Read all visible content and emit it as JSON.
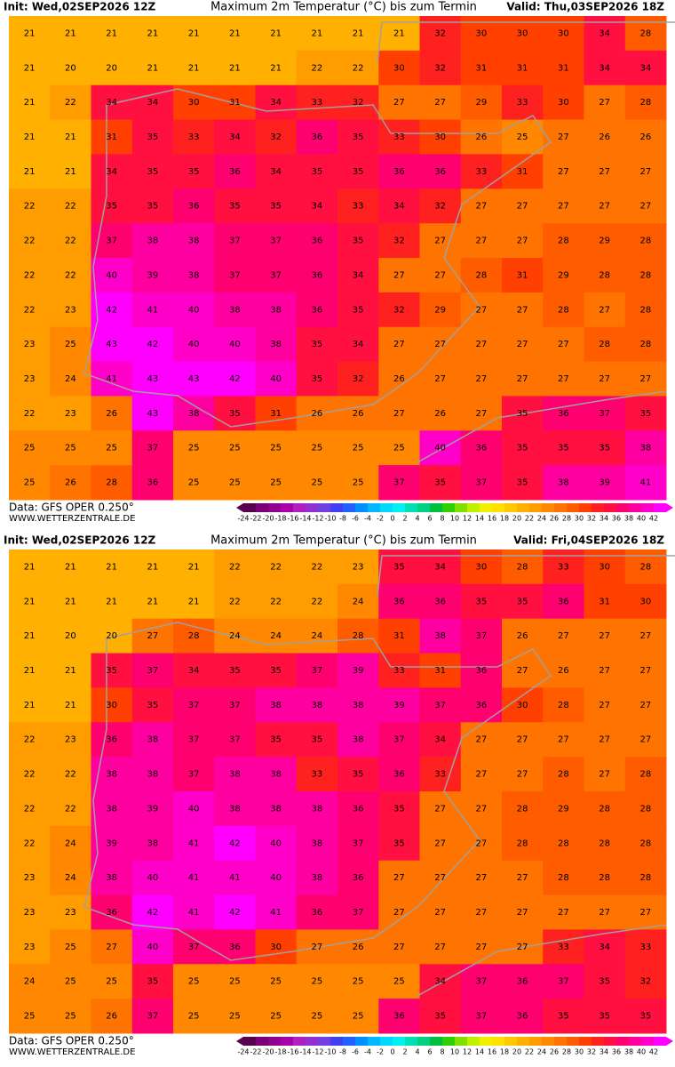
{
  "panels": [
    {
      "init": "Init: Wed,02SEP2026 12Z",
      "title": "Maximum 2m Temperatur (°C) bis zum Termin",
      "valid": "Valid: Thu,03SEP2026 18Z",
      "grid": [
        [
          21,
          21,
          21,
          21,
          21,
          21,
          21,
          21,
          21,
          21,
          32,
          30,
          30,
          30,
          34,
          28
        ],
        [
          21,
          20,
          20,
          21,
          21,
          21,
          21,
          22,
          22,
          30,
          32,
          31,
          31,
          31,
          34,
          34
        ],
        [
          21,
          22,
          34,
          34,
          30,
          31,
          34,
          33,
          32,
          27,
          27,
          29,
          33,
          30,
          27,
          28
        ],
        [
          21,
          21,
          31,
          35,
          33,
          34,
          32,
          36,
          35,
          33,
          30,
          26,
          25,
          27,
          26,
          26
        ],
        [
          21,
          21,
          34,
          35,
          35,
          36,
          34,
          35,
          35,
          36,
          36,
          33,
          31,
          27,
          27,
          27
        ],
        [
          22,
          22,
          35,
          35,
          36,
          35,
          35,
          34,
          33,
          34,
          32,
          27,
          27,
          27,
          27,
          27
        ],
        [
          22,
          22,
          37,
          38,
          38,
          37,
          37,
          36,
          35,
          32,
          27,
          27,
          27,
          28,
          29,
          28
        ],
        [
          22,
          22,
          40,
          39,
          38,
          37,
          37,
          36,
          34,
          27,
          27,
          28,
          31,
          29,
          28,
          28
        ],
        [
          22,
          23,
          42,
          41,
          40,
          38,
          38,
          36,
          35,
          32,
          29,
          27,
          27,
          28,
          27,
          28
        ],
        [
          23,
          25,
          43,
          42,
          40,
          40,
          38,
          35,
          34,
          27,
          27,
          27,
          27,
          27,
          28,
          28
        ],
        [
          23,
          24,
          41,
          43,
          43,
          42,
          40,
          35,
          32,
          26,
          27,
          27,
          27,
          27,
          27,
          27
        ],
        [
          22,
          23,
          26,
          43,
          38,
          35,
          31,
          26,
          26,
          27,
          26,
          27,
          35,
          36,
          37,
          35
        ],
        [
          25,
          25,
          25,
          37,
          25,
          25,
          25,
          25,
          25,
          25,
          40,
          36,
          35,
          35,
          35,
          38
        ],
        [
          25,
          26,
          28,
          36,
          25,
          25,
          25,
          25,
          25,
          37,
          35,
          37,
          35,
          38,
          39,
          41
        ]
      ],
      "source": "Data: GFS OPER 0.250°",
      "website": "WWW.WETTERZENTRALE.DE"
    },
    {
      "init": "Init: Wed,02SEP2026 12Z",
      "title": "Maximum 2m Temperatur (°C) bis zum Termin",
      "valid": "Valid: Fri,04SEP2026 18Z",
      "grid": [
        [
          21,
          21,
          21,
          21,
          21,
          22,
          22,
          22,
          23,
          35,
          34,
          30,
          28,
          33,
          30,
          28
        ],
        [
          21,
          21,
          21,
          21,
          21,
          22,
          22,
          22,
          24,
          36,
          36,
          35,
          35,
          36,
          31,
          30
        ],
        [
          21,
          20,
          20,
          27,
          28,
          24,
          24,
          24,
          28,
          31,
          38,
          37,
          26,
          27,
          27,
          27
        ],
        [
          21,
          21,
          35,
          37,
          34,
          35,
          35,
          37,
          39,
          33,
          31,
          36,
          27,
          26,
          27,
          27
        ],
        [
          21,
          21,
          30,
          35,
          37,
          37,
          38,
          38,
          38,
          39,
          37,
          36,
          30,
          28,
          27,
          27
        ],
        [
          22,
          23,
          36,
          38,
          37,
          37,
          35,
          35,
          38,
          37,
          34,
          27,
          27,
          27,
          27,
          27
        ],
        [
          22,
          22,
          38,
          38,
          37,
          38,
          38,
          33,
          35,
          36,
          33,
          27,
          27,
          28,
          27,
          28
        ],
        [
          22,
          22,
          38,
          39,
          40,
          38,
          38,
          38,
          36,
          35,
          27,
          27,
          28,
          29,
          28,
          28
        ],
        [
          22,
          24,
          39,
          38,
          41,
          42,
          40,
          38,
          37,
          35,
          27,
          27,
          28,
          28,
          28,
          28
        ],
        [
          23,
          24,
          38,
          40,
          41,
          41,
          40,
          38,
          36,
          27,
          27,
          27,
          27,
          28,
          28,
          28
        ],
        [
          23,
          23,
          36,
          42,
          41,
          42,
          41,
          36,
          37,
          27,
          27,
          27,
          27,
          27,
          27,
          27
        ],
        [
          23,
          25,
          27,
          40,
          37,
          36,
          30,
          27,
          26,
          27,
          27,
          27,
          27,
          33,
          34,
          33
        ],
        [
          24,
          25,
          25,
          35,
          25,
          25,
          25,
          25,
          25,
          25,
          34,
          37,
          36,
          37,
          35,
          32
        ],
        [
          25,
          25,
          26,
          37,
          25,
          25,
          25,
          25,
          25,
          36,
          35,
          37,
          36,
          35,
          35,
          35
        ]
      ],
      "source": "Data: GFS OPER 0.250°",
      "website": "WWW.WETTERZENTRALE.DE"
    }
  ],
  "colorbar": {
    "ticks": [
      -24,
      -22,
      -20,
      -18,
      -16,
      -14,
      -12,
      -10,
      -8,
      -6,
      -4,
      -2,
      0,
      2,
      4,
      6,
      8,
      10,
      12,
      14,
      16,
      18,
      20,
      22,
      24,
      26,
      28,
      30,
      32,
      34,
      36,
      38,
      40,
      42
    ],
    "colors": [
      "#5a0050",
      "#7a0078",
      "#90008e",
      "#a800a8",
      "#b020c0",
      "#9030d0",
      "#7040e0",
      "#4040f0",
      "#2060ff",
      "#0090ff",
      "#00b8ff",
      "#00d8ff",
      "#00f0f0",
      "#00e0b0",
      "#00d080",
      "#00c040",
      "#30d000",
      "#80e000",
      "#c0f000",
      "#f0f000",
      "#ffe000",
      "#ffc800",
      "#ffb000",
      "#ff9c00",
      "#ff8800",
      "#ff7400",
      "#ff5c00",
      "#ff4000",
      "#ff2020",
      "#ff1040",
      "#ff0070",
      "#ff00a0",
      "#ff00c8",
      "#ff00ff"
    ]
  }
}
